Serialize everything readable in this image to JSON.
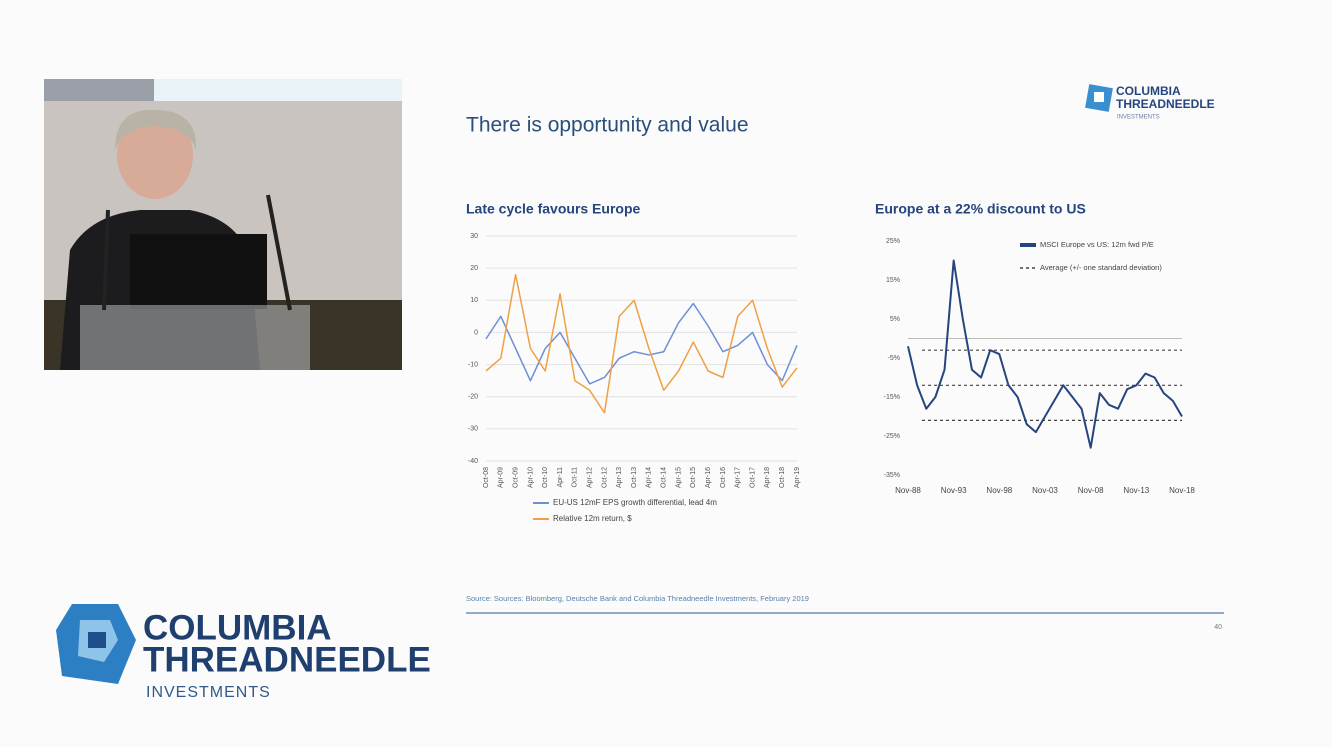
{
  "slide": {
    "title": "There is opportunity and value",
    "logo": {
      "line1": "COLUMBIA",
      "line2": "THREADNEEDLE",
      "line3": "INVESTMENTS"
    },
    "source": "Source: Sources: Bloomberg, Deutsche Bank and Columbia Threadneedle Investments, February 2019",
    "page_number": 40
  },
  "overlay_logo": {
    "line1": "COLUMBIA",
    "line2": "THREADNEEDLE",
    "line3": "INVESTMENTS"
  },
  "chart_data": [
    {
      "type": "line",
      "title": "Late cycle favours Europe",
      "categories": [
        "Oct-08",
        "Apr-09",
        "Oct-09",
        "Apr-10",
        "Oct-10",
        "Apr-11",
        "Oct-11",
        "Apr-12",
        "Oct-12",
        "Apr-13",
        "Oct-13",
        "Apr-14",
        "Oct-14",
        "Apr-15",
        "Oct-15",
        "Apr-16",
        "Oct-16",
        "Apr-17",
        "Oct-17",
        "Apr-18",
        "Oct-18",
        "Apr-19"
      ],
      "series": [
        {
          "name": "EU-US 12mF EPS growth differential, lead 4m",
          "color": "#6d8fd6",
          "values": [
            -2,
            5,
            -5,
            -15,
            -5,
            0,
            -8,
            -16,
            -14,
            -8,
            -6,
            -7,
            -6,
            3,
            9,
            2,
            -6,
            -4,
            0,
            -10,
            -15,
            -4
          ]
        },
        {
          "name": "Relative 12m return, $",
          "color": "#f0a044",
          "values": [
            -12,
            -8,
            18,
            -5,
            -12,
            12,
            -15,
            -18,
            -25,
            5,
            10,
            -5,
            -18,
            -12,
            -3,
            -12,
            -14,
            5,
            10,
            -5,
            -17,
            -11
          ]
        }
      ],
      "ylim": [
        -40,
        30
      ],
      "yticks": [
        30,
        20,
        10,
        0,
        -10,
        -20,
        -30,
        -40
      ],
      "grid": true
    },
    {
      "type": "line",
      "title": "Europe at a 22% discount to US",
      "categories": [
        "Nov-88",
        null,
        null,
        null,
        null,
        "Nov-93",
        null,
        null,
        null,
        null,
        "Nov-98",
        null,
        null,
        null,
        null,
        "Nov-03",
        null,
        null,
        null,
        null,
        "Nov-08",
        null,
        null,
        null,
        null,
        "Nov-13",
        null,
        null,
        null,
        null,
        "Nov-18"
      ],
      "series": [
        {
          "name": "MSCI Europe vs US: 12m fwd P/E",
          "color": "#24457e",
          "values": [
            -2,
            -12,
            -18,
            -15,
            -8,
            20,
            5,
            -8,
            -10,
            -3,
            -4,
            -12,
            -15,
            -22,
            -24,
            -20,
            -16,
            -12,
            -15,
            -18,
            -28,
            -14,
            -17,
            -18,
            -13,
            -12,
            -9,
            -10,
            -14,
            -16,
            -20
          ]
        }
      ],
      "bands": {
        "name": "Average (+/- one standard deviation)",
        "values": [
          -3,
          -12,
          -21
        ]
      },
      "ylim": [
        -35,
        25
      ],
      "yticks": [
        {
          "value": 25,
          "label": "25%"
        },
        {
          "value": 15,
          "label": "15%"
        },
        {
          "value": 5,
          "label": "5%"
        },
        {
          "value": -5,
          "label": "-5%"
        },
        {
          "value": -15,
          "label": "-15%"
        },
        {
          "value": -25,
          "label": "-25%"
        },
        {
          "value": -35,
          "label": "-35%"
        }
      ],
      "grid": false
    }
  ]
}
